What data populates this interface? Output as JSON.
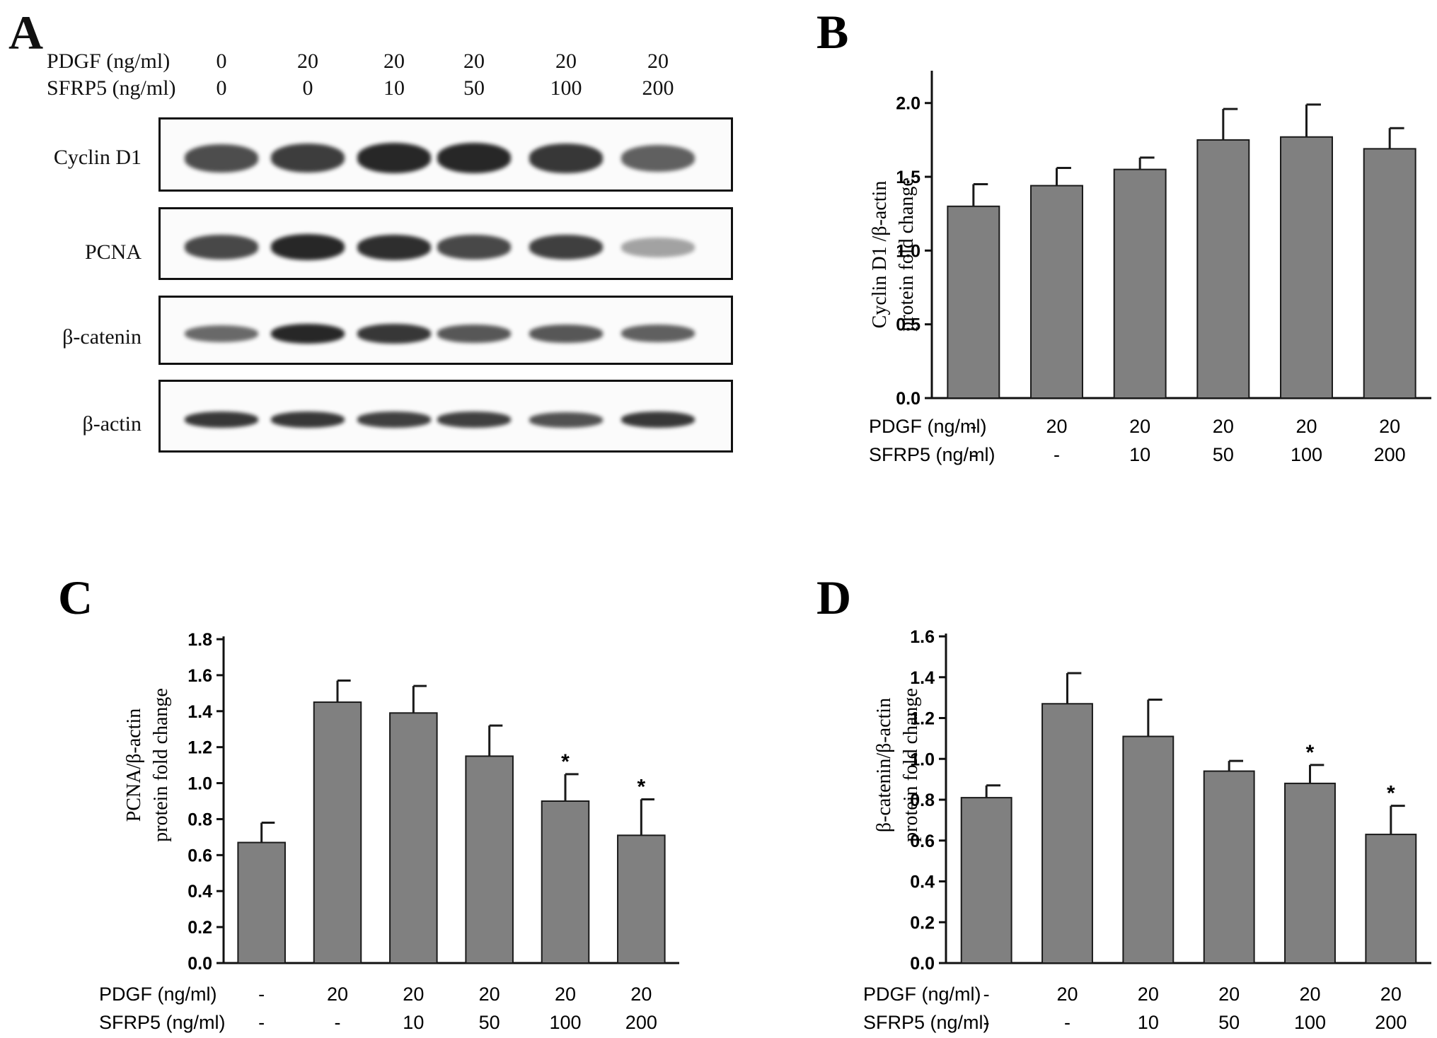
{
  "colors": {
    "bar": "#808080",
    "bar_edge": "#1a1a1a",
    "band": "#1f1f1f"
  },
  "panel_a": {
    "letter": "A",
    "row_headers": [
      "PDGF (ng/ml)",
      "SFRP5 (ng/ml)"
    ],
    "pdgf": [
      "0",
      "20",
      "20",
      "20",
      "20",
      "20"
    ],
    "sfrp5": [
      "0",
      "0",
      "10",
      "50",
      "100",
      "200"
    ],
    "blots": [
      {
        "label": "Cyclin D1",
        "intensity": [
          0.72,
          0.82,
          0.95,
          0.95,
          0.85,
          0.6
        ]
      },
      {
        "label": "PCNA",
        "intensity": [
          0.75,
          0.95,
          0.9,
          0.75,
          0.8,
          0.2
        ]
      },
      {
        "label": "β-catenin",
        "intensity": [
          0.55,
          0.95,
          0.85,
          0.65,
          0.65,
          0.6
        ]
      },
      {
        "label": "β-actin",
        "intensity": [
          0.85,
          0.85,
          0.8,
          0.8,
          0.7,
          0.85
        ]
      }
    ]
  },
  "chart_data": [
    {
      "panel": "B",
      "type": "bar",
      "ylabel_lines": [
        "Cyclin D1 /β-actin",
        "protein fold change"
      ],
      "ylim": [
        0,
        2.2
      ],
      "yticks": [
        "0.0",
        "0.5",
        "1.0",
        "1.5",
        "2.0"
      ],
      "row_headers": [
        "PDGF (ng/ml)",
        "SFRP5 (ng/ml)"
      ],
      "pdgf": [
        "-",
        "20",
        "20",
        "20",
        "20",
        "20"
      ],
      "sfrp5": [
        "-",
        "-",
        "10",
        "50",
        "100",
        "200"
      ],
      "values": [
        1.3,
        1.44,
        1.55,
        1.75,
        1.77,
        1.69
      ],
      "errors": [
        0.15,
        0.12,
        0.08,
        0.21,
        0.22,
        0.14
      ],
      "stars": [
        "",
        "",
        "",
        "",
        "",
        ""
      ]
    },
    {
      "panel": "C",
      "type": "bar",
      "ylabel_lines": [
        "PCNA/β-actin",
        "protein fold change"
      ],
      "ylim": [
        0,
        1.8
      ],
      "yticks": [
        "0.0",
        "0.2",
        "0.4",
        "0.6",
        "0.8",
        "1.0",
        "1.2",
        "1.4",
        "1.6",
        "1.8"
      ],
      "row_headers": [
        "PDGF (ng/ml)",
        "SFRP5 (ng/ml)"
      ],
      "pdgf": [
        "-",
        "20",
        "20",
        "20",
        "20",
        "20"
      ],
      "sfrp5": [
        "-",
        "-",
        "10",
        "50",
        "100",
        "200"
      ],
      "values": [
        0.67,
        1.45,
        1.39,
        1.15,
        0.9,
        0.71
      ],
      "errors": [
        0.11,
        0.12,
        0.15,
        0.17,
        0.15,
        0.2
      ],
      "stars": [
        "",
        "",
        "",
        "",
        "*",
        "*"
      ]
    },
    {
      "panel": "D",
      "type": "bar",
      "ylabel_lines": [
        "β-catenin/β-actin",
        "protein fold change"
      ],
      "ylim": [
        0,
        1.6
      ],
      "yticks": [
        "0.0",
        "0.2",
        "0.4",
        "0.6",
        "0.8",
        "1.0",
        "1.2",
        "1.4",
        "1.6"
      ],
      "row_headers": [
        "PDGF (ng/ml)",
        "SFRP5 (ng/ml)"
      ],
      "pdgf": [
        "-",
        "20",
        "20",
        "20",
        "20",
        "20"
      ],
      "sfrp5": [
        "-",
        "-",
        "10",
        "50",
        "100",
        "200"
      ],
      "values": [
        0.81,
        1.27,
        1.11,
        0.94,
        0.88,
        0.63
      ],
      "errors": [
        0.06,
        0.15,
        0.18,
        0.05,
        0.09,
        0.14
      ],
      "stars": [
        "",
        "",
        "",
        "",
        "*",
        "*"
      ]
    }
  ]
}
